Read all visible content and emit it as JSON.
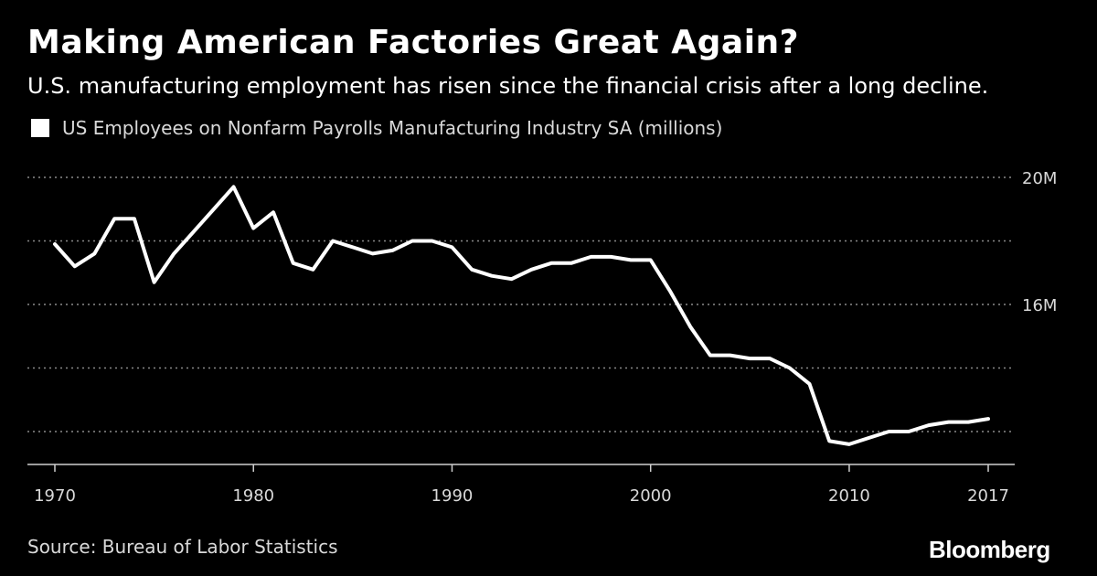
{
  "header": {
    "title": "Making American Factories Great Again?",
    "subtitle": "U.S. manufacturing employment has risen  since the financial crisis after a long decline."
  },
  "footer": {
    "source": "Source: Bureau of Labor Statistics",
    "brand": "Bloomberg"
  },
  "chart_data": {
    "type": "line",
    "title": "Making American Factories Great Again?",
    "subtitle": "U.S. manufacturing employment has risen  since the financial crisis after a long decline.",
    "xlabel": "",
    "ylabel": "",
    "xlim": [
      1969.2,
      2018.4
    ],
    "ylim": [
      11.0,
      20.3
    ],
    "x_ticks": [
      {
        "value": 1970,
        "label": "1970"
      },
      {
        "value": 1980,
        "label": "1980"
      },
      {
        "value": 1990,
        "label": "1990"
      },
      {
        "value": 2000,
        "label": "2000"
      },
      {
        "value": 2010,
        "label": "2010"
      },
      {
        "value": 2017,
        "label": "2017"
      }
    ],
    "y_ticks": [
      {
        "value": 20,
        "label": "20M"
      },
      {
        "value": 18,
        "label": ""
      },
      {
        "value": 16,
        "label": "16M"
      },
      {
        "value": 14,
        "label": ""
      },
      {
        "value": 12,
        "label": ""
      }
    ],
    "grid": true,
    "legend_position": "top-left",
    "series": [
      {
        "name": "US Employees on Nonfarm Payrolls Manufacturing Industry SA (millions)",
        "color": "#ffffff",
        "x": [
          1970,
          1971,
          1972,
          1973,
          1974,
          1975,
          1976,
          1977,
          1978,
          1979,
          1980,
          1981,
          1982,
          1983,
          1984,
          1985,
          1986,
          1987,
          1988,
          1989,
          1990,
          1991,
          1992,
          1993,
          1994,
          1995,
          1996,
          1997,
          1998,
          1999,
          2000,
          2001,
          2002,
          2003,
          2004,
          2005,
          2006,
          2007,
          2008,
          2009,
          2010,
          2011,
          2012,
          2013,
          2014,
          2015,
          2016,
          2017
        ],
        "values": [
          17.9,
          17.2,
          17.6,
          18.7,
          18.7,
          16.7,
          17.6,
          18.3,
          19.0,
          19.7,
          18.4,
          18.9,
          17.3,
          17.1,
          18.0,
          17.8,
          17.6,
          17.7,
          18.0,
          18.0,
          17.8,
          17.1,
          16.9,
          16.8,
          17.1,
          17.3,
          17.3,
          17.5,
          17.5,
          17.4,
          17.4,
          16.4,
          15.3,
          14.4,
          14.4,
          14.3,
          14.3,
          14.0,
          13.5,
          11.7,
          11.6,
          11.8,
          12.0,
          12.0,
          12.2,
          12.3,
          12.3,
          12.4
        ]
      }
    ]
  }
}
